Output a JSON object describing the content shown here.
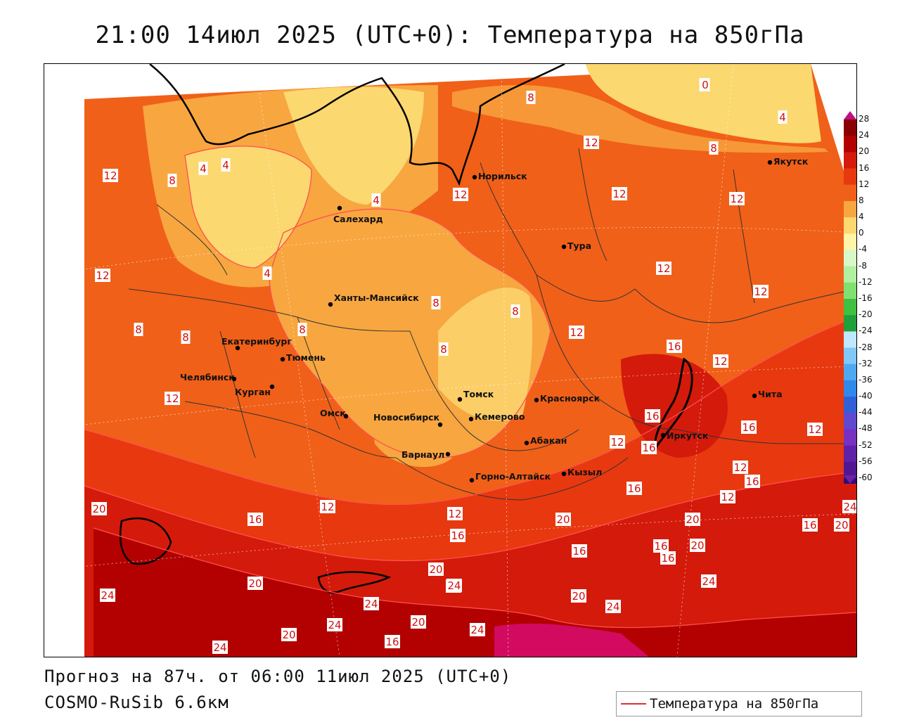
{
  "title": "21:00 14июл 2025 (UTC+0): Температура на 850гПа",
  "footer": {
    "forecast": "Прогноз на 87ч. от 06:00 11июл 2025 (UTC+0)",
    "model": "COSMO-RuSib 6.6км"
  },
  "legend": {
    "label": "Температура на 850гПа",
    "line_color": "#e03030"
  },
  "colorbar": [
    {
      "label": "28",
      "color": "#8b0000"
    },
    {
      "label": "24",
      "color": "#b30000"
    },
    {
      "label": "20",
      "color": "#d41a0a"
    },
    {
      "label": "16",
      "color": "#e8380f"
    },
    {
      "label": "12",
      "color": "#f06018"
    },
    {
      "label": "8",
      "color": "#f7a640"
    },
    {
      "label": "4",
      "color": "#fcd870"
    },
    {
      "label": "0",
      "color": "#fff5a8"
    },
    {
      "label": "-4",
      "color": "#d8f8c8"
    },
    {
      "label": "-8",
      "color": "#b0f0a0"
    },
    {
      "label": "-12",
      "color": "#80e070"
    },
    {
      "label": "-16",
      "color": "#40c040"
    },
    {
      "label": "-20",
      "color": "#1fa03a"
    },
    {
      "label": "-24",
      "color": "#bfe8ff"
    },
    {
      "label": "-28",
      "color": "#80c8f8"
    },
    {
      "label": "-32",
      "color": "#50a8f0"
    },
    {
      "label": "-36",
      "color": "#3088e8"
    },
    {
      "label": "-40",
      "color": "#3060d8"
    },
    {
      "label": "-44",
      "color": "#6048d0"
    },
    {
      "label": "-48",
      "color": "#7830c0"
    },
    {
      "label": "-52",
      "color": "#6020a8"
    },
    {
      "label": "-56",
      "color": "#501890"
    },
    {
      "label": "-60",
      "color": "#300c78"
    }
  ],
  "cities": [
    {
      "name": "Норильск"
    },
    {
      "name": "Якутск"
    },
    {
      "name": "Салехард"
    },
    {
      "name": "Тура"
    },
    {
      "name": "Ханты-Мансийск"
    },
    {
      "name": "Екатеринбург"
    },
    {
      "name": "Тюмень"
    },
    {
      "name": "Челябинск"
    },
    {
      "name": "Курган"
    },
    {
      "name": "Омск"
    },
    {
      "name": "Новосибирск"
    },
    {
      "name": "Томск"
    },
    {
      "name": "Кемерово"
    },
    {
      "name": "Красноярск"
    },
    {
      "name": "Барнаул"
    },
    {
      "name": "Абакан"
    },
    {
      "name": "Иркутск"
    },
    {
      "name": "Чита"
    },
    {
      "name": "Горно-Алтайск"
    },
    {
      "name": "Кызыл"
    }
  ],
  "isotherm_labels": [
    "0",
    "4",
    "8",
    "12",
    "16",
    "20",
    "24"
  ]
}
